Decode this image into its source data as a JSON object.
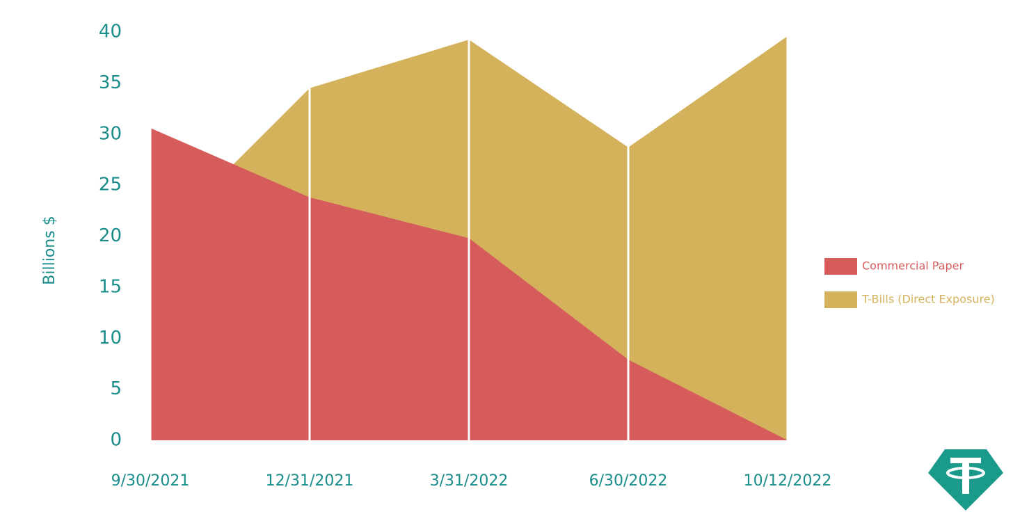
{
  "chart_data": {
    "type": "area",
    "y_label": "Billions $",
    "categories": [
      "9/30/2021",
      "12/31/2021",
      "3/31/2022",
      "6/30/2022",
      "10/12/2022"
    ],
    "series": [
      {
        "name": "Commercial Paper",
        "color": "#d65c5c",
        "values": [
          30.6,
          23.8,
          19.8,
          7.9,
          0
        ]
      },
      {
        "name": "T-Bills (Direct Exposure)",
        "color": "#d4b25c",
        "values": [
          18.9,
          34.5,
          39.25,
          28.7,
          39.6
        ]
      }
    ],
    "ylim": [
      0,
      40
    ],
    "yticks": [
      0,
      5,
      10,
      15,
      20,
      25,
      30,
      35,
      40
    ],
    "grid": true,
    "grid_color": "#ffffff",
    "legend": "right"
  }
}
